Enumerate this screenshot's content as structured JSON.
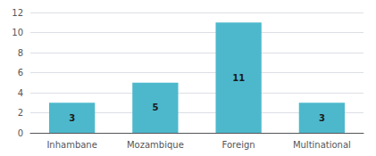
{
  "chart_data": {
    "type": "bar",
    "categories": [
      "Inhambane",
      "Mozambique",
      "Foreign",
      "Multinational"
    ],
    "values": [
      3,
      5,
      11,
      3
    ],
    "color": "#4db8cc",
    "ylim": [
      0,
      12
    ],
    "yticks": [
      0,
      2,
      4,
      6,
      8,
      10,
      12
    ],
    "grid": true,
    "data_labels": true
  }
}
